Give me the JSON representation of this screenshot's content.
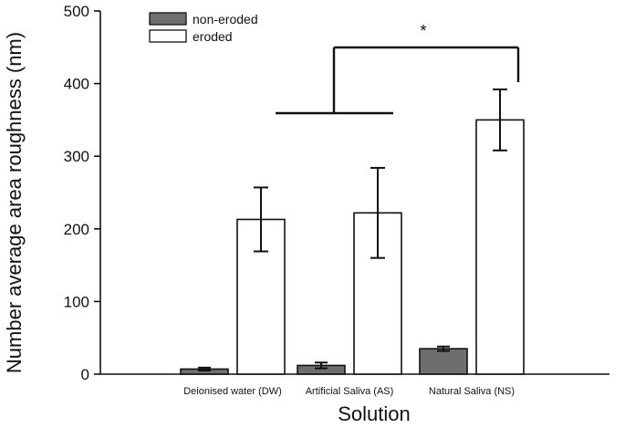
{
  "chart_data": {
    "type": "bar",
    "title": "",
    "xlabel": "Solution",
    "ylabel": "Number average area roughness (nm)",
    "ylim": [
      0,
      500
    ],
    "yticks": [
      "0",
      "100",
      "200",
      "300",
      "400",
      "500"
    ],
    "categories": [
      "Deionised water (DW)",
      "Artificial Saliva (AS)",
      "Natural Saliva (NS)"
    ],
    "series": [
      {
        "name": "non-eroded",
        "color": "#6e6e6e",
        "values": [
          7,
          12,
          35
        ],
        "errors": [
          2,
          4,
          3
        ]
      },
      {
        "name": "eroded",
        "color": "#ffffff",
        "values": [
          213,
          222,
          350
        ],
        "errors": [
          44,
          62,
          42
        ]
      }
    ],
    "legend_position": "top-left",
    "grid": false,
    "annotations": [
      {
        "text": "*",
        "type": "significance-bracket"
      }
    ]
  }
}
